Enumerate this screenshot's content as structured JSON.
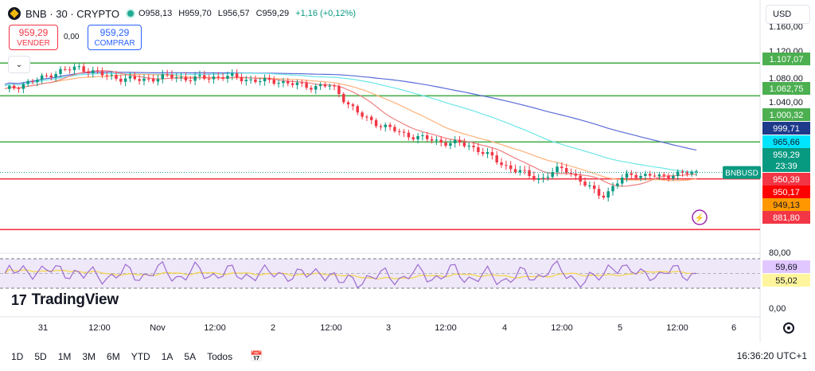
{
  "header": {
    "symbol": "BNB · 30 · CRYPTO",
    "open": "O958,13",
    "high": "H959,70",
    "low": "L956,57",
    "close": "C959,29",
    "change": "+1,16 (+0,12%)"
  },
  "trade": {
    "sell_price": "959,29",
    "sell_label": "VENDER",
    "spread": "0,00",
    "buy_price": "959,29",
    "buy_label": "COMPRAR"
  },
  "currency": "USD",
  "collapse_glyph": "⌄",
  "logo_text": "TradingView",
  "logo_mark": "17",
  "x_axis_labels": [
    "31",
    "12:00",
    "Nov",
    "12:00",
    "2",
    "12:00",
    "3",
    "12:00",
    "4",
    "12:00",
    "5",
    "12:00",
    "6"
  ],
  "price_axis_ticks": [
    "1.160,00",
    "1.120,00",
    "1.080,00",
    "1.040,00",
    "1.000,00",
    "965,66",
    "881,80"
  ],
  "price_tags": [
    {
      "id": "level-1107",
      "text": "1.107,07",
      "color": "#4caf50"
    },
    {
      "id": "level-1062",
      "text": "1.062,75",
      "color": "#4caf50"
    },
    {
      "id": "level-1000",
      "text": "1.000,32",
      "color": "#4caf50"
    },
    {
      "id": "ma-999",
      "text": "999,71",
      "color": "#1e3a8a"
    },
    {
      "id": "ma-965",
      "text": "965,66",
      "color": "#00e5ff"
    },
    {
      "id": "last-price",
      "text": "959,29",
      "color": "#089981"
    },
    {
      "id": "countdown",
      "text": "23:39",
      "color": "#089981"
    },
    {
      "id": "level-950-39",
      "text": "950,39",
      "color": "#f23645"
    },
    {
      "id": "level-950-17",
      "text": "950,17",
      "color": "#ff0000"
    },
    {
      "id": "ma-949",
      "text": "949,13",
      "color": "#ff9800"
    },
    {
      "id": "level-881",
      "text": "881,80",
      "color": "#f23645"
    }
  ],
  "symbol_tag": "BNBUSD",
  "rsi": {
    "axis_ticks": [
      "80,00",
      "0,00"
    ],
    "value_tag": "59,69",
    "signal_tag": "55,02"
  },
  "bottom_bar": {
    "ranges": [
      "1D",
      "5D",
      "1M",
      "3M",
      "6M",
      "YTD",
      "1A",
      "5A",
      "Todos"
    ],
    "clock": "16:36:20 UTC+1"
  },
  "icons": [
    "bnb-logo-icon",
    "live-dot-icon",
    "collapse-chevron-icon",
    "lightning-icon",
    "calendar-icon",
    "gear-icon"
  ],
  "colors": {
    "up": "#089981",
    "down": "#f23645",
    "green_level": "#4caf50",
    "red_level": "#f23645",
    "ma_blue": "#5b6bd8",
    "ma_cyan": "#6de6e6",
    "ma_orange": "#ffb27a",
    "ma_red": "#f08080",
    "rsi_line": "#9c6bd0",
    "rsi_signal": "#f5d442",
    "accent": "#2962ff"
  },
  "chart_data": {
    "type": "candlestick",
    "timeframe": "30",
    "y_scale": [
      880,
      1160
    ],
    "horizontal_levels": [
      1107.07,
      1062.75,
      1000.32,
      950.39,
      881.8
    ],
    "close_path": [
      1070,
      1074,
      1079,
      1082,
      1086,
      1092,
      1096,
      1098,
      1101,
      1098,
      1094,
      1090,
      1088,
      1086,
      1085,
      1084,
      1086,
      1087,
      1089,
      1088,
      1086,
      1086,
      1087,
      1088,
      1089,
      1088,
      1086,
      1084,
      1083,
      1082,
      1083,
      1080,
      1078,
      1076,
      1075,
      1077,
      1075,
      1062,
      1049,
      1037,
      1030,
      1025,
      1020,
      1015,
      1010,
      1008,
      1005,
      1003,
      1000,
      999,
      998,
      995,
      990,
      983,
      975,
      968,
      963,
      958,
      953,
      950,
      958,
      964,
      962,
      950,
      940,
      932,
      928,
      942,
      952,
      958,
      954,
      955,
      953,
      956,
      957,
      958,
      959
    ],
    "rsi": {
      "overbought": 70,
      "oversold": 30,
      "last": 59.69,
      "signal_last": 55.02
    }
  }
}
